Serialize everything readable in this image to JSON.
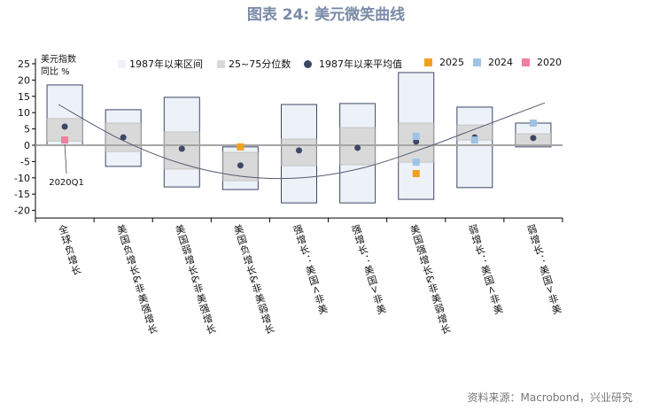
{
  "title": "图表 24: 美元微笑曲线",
  "source": "资料来源：Macrobond，兴业研究",
  "chart_data": {
    "type": "box-range",
    "ylabel": "美元指数\n同比 %",
    "ylabel_lines": [
      "美元指数",
      "同比 %"
    ],
    "ylim": [
      -22.3,
      25
    ],
    "yticks": [
      25,
      20,
      15,
      10,
      5,
      0,
      -5,
      -10,
      -15,
      -20
    ],
    "categories": [
      "全球负增长",
      "美国负增长&非美强增长",
      "美国弱增长&非美强增长",
      "美国负增长&非美弱增长",
      "强增长：美国<非美",
      "强增长：美国>非美",
      "美国强增长&非美弱增长",
      "弱增长：美国<非美",
      "弱增长：美国>非美"
    ],
    "legend": [
      "1987年以来区间",
      "25~75分位数",
      "1987年以来平均值",
      "2025",
      "2024",
      "2020"
    ],
    "range": [
      [
        0,
        18.5
      ],
      [
        -6.5,
        10.9
      ],
      [
        -12.8,
        14.7
      ],
      [
        -13.6,
        -0.5
      ],
      [
        -17.7,
        12.5
      ],
      [
        -17.7,
        12.8
      ],
      [
        -16.6,
        22.3
      ],
      [
        -13,
        11.7
      ],
      [
        -0.5,
        6.8
      ]
    ],
    "iqr": [
      [
        1.3,
        8.2
      ],
      [
        -1.9,
        6.8
      ],
      [
        -7.3,
        4.1
      ],
      [
        -10.9,
        -2.2
      ],
      [
        -6.3,
        1.9
      ],
      [
        -6,
        5.4
      ],
      [
        -5.2,
        6.8
      ],
      [
        1.6,
        6.2
      ],
      [
        0,
        3.5
      ]
    ],
    "mean": [
      5.7,
      2.4,
      -1.1,
      -6.2,
      -1.6,
      -0.8,
      1.1,
      2.4,
      2.2
    ],
    "y2025": [
      [
        3,
        -0.5
      ],
      [
        6,
        -8.7
      ]
    ],
    "y2024": [
      [
        6,
        2.7
      ],
      [
        6,
        -5.2
      ],
      [
        7,
        1.6
      ],
      [
        8,
        6.8
      ]
    ],
    "y2020": [
      [
        0,
        1.6
      ]
    ],
    "annotation": "2020Q1",
    "trend": [
      12.5,
      2,
      -5.5,
      -9.5,
      -10,
      -7,
      -1,
      6,
      13
    ],
    "colors": {
      "range": "#edf1f8",
      "range_border": "#3d4766",
      "iqr": "#d9d9d9",
      "mean": "#3d4766",
      "y2025": "#f0a020",
      "y2024": "#9dc3e6",
      "y2020": "#f07fa0",
      "trend": "#555a70"
    }
  }
}
